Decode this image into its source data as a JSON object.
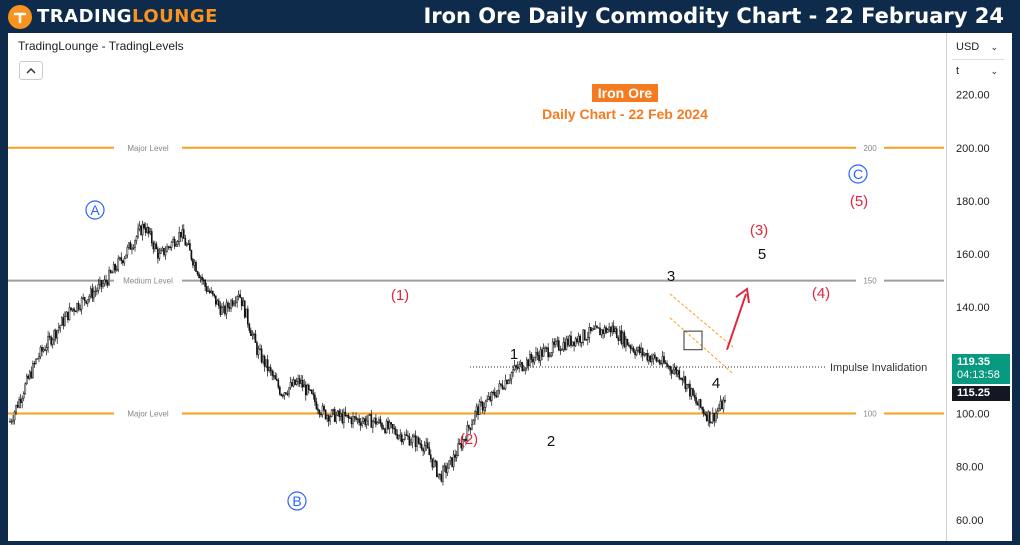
{
  "header": {
    "logo_text_a": "TRADING",
    "logo_text_b": "LOUNGE",
    "title": "Iron Ore Daily Commodity Chart - 22 February 24"
  },
  "toolbar": {
    "source_label": "TradingLounge - TradingLevels",
    "currency": "USD",
    "unit": "t"
  },
  "colors": {
    "major_level": "#f7a01e",
    "mid_level": "#9e9e9e",
    "wave_red": "#e0283c",
    "wave_blue": "#2962ff",
    "wave_black": "#111111",
    "title_orange": "#f47b20",
    "price_badge": "#089981",
    "price_low_badge": "#131722"
  },
  "chart_data": {
    "type": "candlestick",
    "title": "Iron Ore",
    "subtitle": "Daily Chart - 22 Feb 2024",
    "ylim": [
      58,
      228
    ],
    "y_ticks": [
      60,
      80,
      100,
      120,
      140,
      160,
      180,
      200,
      220
    ],
    "y_tick_labels": [
      "60.00",
      "80.00",
      "100.00",
      "120.00",
      "140.00",
      "160.00",
      "180.00",
      "200.00",
      "220.00"
    ],
    "bar_count": 470,
    "price_path": [
      [
        0,
        97
      ],
      [
        18,
        121
      ],
      [
        40,
        139
      ],
      [
        62,
        149
      ],
      [
        72,
        157
      ],
      [
        88,
        171
      ],
      [
        98,
        159
      ],
      [
        112,
        168
      ],
      [
        128,
        148
      ],
      [
        140,
        138
      ],
      [
        150,
        146
      ],
      [
        162,
        124
      ],
      [
        178,
        108
      ],
      [
        190,
        112
      ],
      [
        206,
        100
      ],
      [
        222,
        98
      ],
      [
        240,
        97
      ],
      [
        256,
        92
      ],
      [
        272,
        88
      ],
      [
        282,
        76
      ],
      [
        290,
        82
      ],
      [
        298,
        91
      ],
      [
        306,
        101
      ],
      [
        316,
        106
      ],
      [
        330,
        116
      ],
      [
        346,
        122
      ],
      [
        362,
        126
      ],
      [
        380,
        130
      ],
      [
        395,
        132
      ],
      [
        410,
        124
      ],
      [
        428,
        119
      ],
      [
        440,
        115
      ],
      [
        450,
        104
      ],
      [
        460,
        98
      ],
      [
        468,
        104
      ],
      [
        476,
        96
      ],
      [
        484,
        109
      ],
      [
        494,
        114
      ],
      [
        504,
        117
      ],
      [
        514,
        118
      ],
      [
        524,
        117
      ],
      [
        534,
        109
      ],
      [
        542,
        102
      ],
      [
        550,
        110
      ],
      [
        560,
        115
      ],
      [
        572,
        122
      ],
      [
        584,
        120
      ],
      [
        596,
        115
      ],
      [
        608,
        119
      ],
      [
        618,
        126
      ],
      [
        630,
        132
      ],
      [
        644,
        136
      ],
      [
        658,
        141
      ],
      [
        668,
        143
      ],
      [
        676,
        137
      ],
      [
        686,
        129
      ],
      [
        696,
        136
      ],
      [
        704,
        130
      ],
      [
        712,
        124
      ],
      [
        717,
        119
      ]
    ],
    "levels": [
      {
        "value": 200,
        "label": "Major Level",
        "right_label": "200",
        "kind": "major"
      },
      {
        "value": 150,
        "label": "Medium Level",
        "right_label": "150",
        "kind": "mid"
      },
      {
        "value": 100,
        "label": "Major Level",
        "right_label": "100",
        "kind": "major"
      }
    ],
    "invalidation": {
      "value": 117.5,
      "label": "Impulse Invalidation"
    },
    "current_price": "119.35",
    "countdown": "04:13:58",
    "low_price": "115.25",
    "wave_labels": [
      {
        "text": "A",
        "style": "circle-blue",
        "price": 172
      },
      {
        "text": "B",
        "style": "circle-blue",
        "price": 72
      },
      {
        "text": "C",
        "style": "circle-blue",
        "price": 191
      },
      {
        "text": "(1)",
        "style": "red",
        "price": 143
      },
      {
        "text": "(2)",
        "style": "red",
        "price": 96
      },
      {
        "text": "(3)",
        "style": "red",
        "price": 169
      },
      {
        "text": "(4)",
        "style": "red",
        "price": 146
      },
      {
        "text": "(5)",
        "style": "red",
        "price": 180
      },
      {
        "text": "1",
        "style": "black",
        "price": 122
      },
      {
        "text": "2",
        "style": "black",
        "price": 94
      },
      {
        "text": "3",
        "style": "black",
        "price": 147
      },
      {
        "text": "4",
        "style": "black",
        "price": 115
      },
      {
        "text": "5",
        "style": "black",
        "price": 156
      }
    ]
  }
}
